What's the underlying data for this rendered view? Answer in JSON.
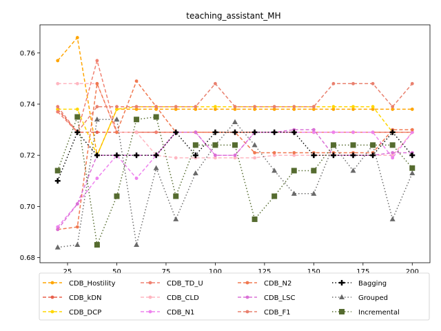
{
  "chart_data": {
    "type": "line",
    "title": "teaching_assistant_MH",
    "xlabel": "",
    "ylabel": "",
    "xlim": [
      11,
      209
    ],
    "ylim": [
      0.678,
      0.771
    ],
    "x_ticks": [
      25,
      50,
      75,
      100,
      125,
      150,
      175,
      200
    ],
    "y_ticks": [
      0.68,
      0.7,
      0.72,
      0.74,
      0.76
    ],
    "y_tick_labels": [
      "0.68",
      "0.70",
      "0.72",
      "0.74",
      "0.76"
    ],
    "x": [
      20,
      30,
      40,
      50,
      60,
      70,
      80,
      90,
      100,
      110,
      120,
      130,
      140,
      150,
      160,
      170,
      180,
      190,
      200
    ],
    "legend_position": "lower-center",
    "legend_columns": 4,
    "series": [
      {
        "name": "CDB_Hostility",
        "color": "#ffa500",
        "dash": "5,3",
        "marker": "circle",
        "values": [
          0.757,
          0.766,
          0.72,
          0.738,
          0.738,
          0.738,
          0.738,
          0.738,
          0.738,
          0.738,
          0.738,
          0.738,
          0.738,
          0.738,
          0.738,
          0.738,
          0.738,
          0.738,
          0.738
        ]
      },
      {
        "name": "CDB_kDN",
        "color": "#e8604c",
        "dash": "5,3",
        "marker": "circle",
        "values": [
          0.738,
          0.729,
          0.729,
          0.729,
          0.729,
          0.729,
          0.729,
          0.729,
          0.729,
          0.729,
          0.729,
          0.729,
          0.729,
          0.729,
          0.729,
          0.729,
          0.729,
          0.729,
          0.729
        ]
      },
      {
        "name": "CDB_DCP",
        "color": "#ffd700",
        "dash": "5,3",
        "marker": "circle",
        "values": [
          0.738,
          0.738,
          0.72,
          0.738,
          0.739,
          0.739,
          0.739,
          0.739,
          0.739,
          0.739,
          0.739,
          0.739,
          0.739,
          0.739,
          0.739,
          0.739,
          0.739,
          0.729,
          0.729
        ]
      },
      {
        "name": "CDB_TD_U",
        "color": "#f08070",
        "dash": "5,3",
        "marker": "circle",
        "values": [
          0.737,
          0.729,
          0.757,
          0.729,
          0.729,
          0.729,
          0.729,
          0.729,
          0.729,
          0.729,
          0.729,
          0.729,
          0.729,
          0.729,
          0.729,
          0.729,
          0.729,
          0.729,
          0.729
        ]
      },
      {
        "name": "CDB_CLD",
        "color": "#ffb6c1",
        "dash": "5,3",
        "marker": "circle",
        "values": [
          0.748,
          0.748,
          0.748,
          0.729,
          0.729,
          0.72,
          0.719,
          0.719,
          0.719,
          0.719,
          0.719,
          0.72,
          0.72,
          0.72,
          0.72,
          0.72,
          0.72,
          0.72,
          0.729
        ]
      },
      {
        "name": "CDB_N1",
        "color": "#ee82ee",
        "dash": "5,3",
        "marker": "circle",
        "values": [
          0.692,
          0.701,
          0.711,
          0.72,
          0.711,
          0.72,
          0.729,
          0.729,
          0.72,
          0.72,
          0.729,
          0.729,
          0.729,
          0.729,
          0.729,
          0.729,
          0.729,
          0.719,
          0.729
        ]
      },
      {
        "name": "CDB_N2",
        "color": "#f07850",
        "dash": "5,3",
        "marker": "circle",
        "values": [
          0.691,
          0.692,
          0.748,
          0.729,
          0.749,
          0.739,
          0.729,
          0.729,
          0.729,
          0.729,
          0.721,
          0.721,
          0.721,
          0.721,
          0.721,
          0.721,
          0.721,
          0.73,
          0.73
        ]
      },
      {
        "name": "CDB_LSC",
        "color": "#da70d6",
        "dash": "5,3",
        "marker": "circle",
        "values": [
          0.691,
          0.701,
          0.72,
          0.72,
          0.72,
          0.72,
          0.729,
          0.729,
          0.72,
          0.72,
          0.729,
          0.729,
          0.73,
          0.73,
          0.72,
          0.72,
          0.72,
          0.721,
          0.721
        ]
      },
      {
        "name": "CDB_F1",
        "color": "#e9806e",
        "dash": "5,3",
        "marker": "circle",
        "values": [
          0.739,
          0.729,
          0.739,
          0.739,
          0.739,
          0.739,
          0.739,
          0.739,
          0.748,
          0.739,
          0.739,
          0.739,
          0.739,
          0.739,
          0.748,
          0.748,
          0.748,
          0.739,
          0.748
        ]
      },
      {
        "name": "Bagging",
        "color": "#000000",
        "dash": "1.5,3",
        "marker": "plus",
        "values": [
          0.71,
          0.729,
          0.72,
          0.72,
          0.72,
          0.72,
          0.729,
          0.72,
          0.729,
          0.729,
          0.729,
          0.729,
          0.729,
          0.72,
          0.72,
          0.72,
          0.72,
          0.729,
          0.72
        ]
      },
      {
        "name": "Grouped",
        "color": "#696969",
        "dash": "1.5,3",
        "marker": "triangle",
        "values": [
          0.684,
          0.685,
          0.734,
          0.734,
          0.685,
          0.715,
          0.695,
          0.713,
          0.724,
          0.733,
          0.724,
          0.714,
          0.705,
          0.705,
          0.724,
          0.714,
          0.724,
          0.695,
          0.713
        ]
      },
      {
        "name": "Incremental",
        "color": "#556b2f",
        "dash": "1.5,3",
        "marker": "square",
        "values": [
          0.714,
          0.735,
          0.685,
          0.704,
          0.734,
          0.735,
          0.704,
          0.724,
          0.724,
          0.724,
          0.695,
          0.704,
          0.714,
          0.714,
          0.724,
          0.724,
          0.724,
          0.724,
          0.715
        ]
      }
    ]
  }
}
